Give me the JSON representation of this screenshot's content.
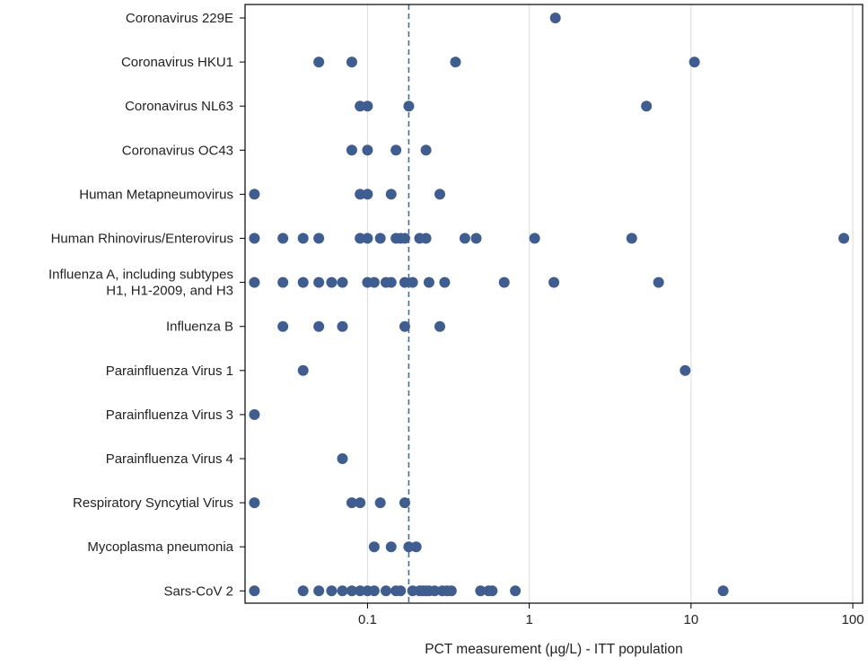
{
  "chart_data": {
    "type": "scatter",
    "title": "",
    "xlabel": "PCT measurement (µg/L) - ITT population",
    "ylabel": "",
    "x_scale": "log",
    "xlim": [
      0.0175,
      115
    ],
    "x_ticks": [
      0.1,
      1,
      10,
      100
    ],
    "x_tick_labels": [
      "0.1",
      "1",
      "10",
      "100"
    ],
    "grid": "vertical gridlines at major x ticks",
    "reference_line": {
      "value": 0.18,
      "style": "dashed"
    },
    "marker_color": "#3f5d8f",
    "reference_color": "#3a6fae",
    "grid_color": "#e0e0e0",
    "categories": [
      {
        "label": [
          "Coronavirus 229E"
        ],
        "values": [
          1.45
        ]
      },
      {
        "label": [
          "Coronavirus HKU1"
        ],
        "values": [
          0.05,
          0.08,
          0.35,
          10.5
        ]
      },
      {
        "label": [
          "Coronavirus NL63"
        ],
        "values": [
          0.09,
          0.1,
          0.18,
          5.3
        ]
      },
      {
        "label": [
          "Coronavirus OC43"
        ],
        "values": [
          0.08,
          0.1,
          0.15,
          0.23
        ]
      },
      {
        "label": [
          "Human Metapneumovirus"
        ],
        "values": [
          0.02,
          0.09,
          0.1,
          0.14,
          0.28
        ]
      },
      {
        "label": [
          "Human Rhinovirus/Enterovirus"
        ],
        "values": [
          0.02,
          0.03,
          0.04,
          0.05,
          0.09,
          0.1,
          0.12,
          0.15,
          0.16,
          0.17,
          0.21,
          0.23,
          0.4,
          0.47,
          1.08,
          4.3,
          88
        ]
      },
      {
        "label": [
          "Influenza A, including subtypes",
          "H1, H1-2009, and H3"
        ],
        "values": [
          0.02,
          0.03,
          0.04,
          0.05,
          0.06,
          0.07,
          0.1,
          0.11,
          0.13,
          0.14,
          0.17,
          0.19,
          0.24,
          0.3,
          0.7,
          1.42,
          6.3
        ]
      },
      {
        "label": [
          "Influenza B"
        ],
        "values": [
          0.03,
          0.05,
          0.07,
          0.17,
          0.28
        ]
      },
      {
        "label": [
          "Parainfluenza Virus 1"
        ],
        "values": [
          0.04,
          9.2
        ]
      },
      {
        "label": [
          "Parainfluenza Virus 3"
        ],
        "values": [
          0.02
        ]
      },
      {
        "label": [
          "Parainfluenza Virus 4"
        ],
        "values": [
          0.07
        ]
      },
      {
        "label": [
          "Respiratory Syncytial Virus"
        ],
        "values": [
          0.02,
          0.08,
          0.09,
          0.12,
          0.17
        ]
      },
      {
        "label": [
          "Mycoplasma pneumonia"
        ],
        "values": [
          0.11,
          0.14,
          0.18,
          0.2
        ]
      },
      {
        "label": [
          "Sars-CoV 2"
        ],
        "values": [
          0.02,
          0.04,
          0.05,
          0.06,
          0.07,
          0.08,
          0.09,
          0.1,
          0.11,
          0.13,
          0.15,
          0.16,
          0.19,
          0.21,
          0.22,
          0.23,
          0.24,
          0.26,
          0.29,
          0.31,
          0.33,
          0.5,
          0.56,
          0.59,
          0.82,
          15.8
        ]
      }
    ]
  }
}
